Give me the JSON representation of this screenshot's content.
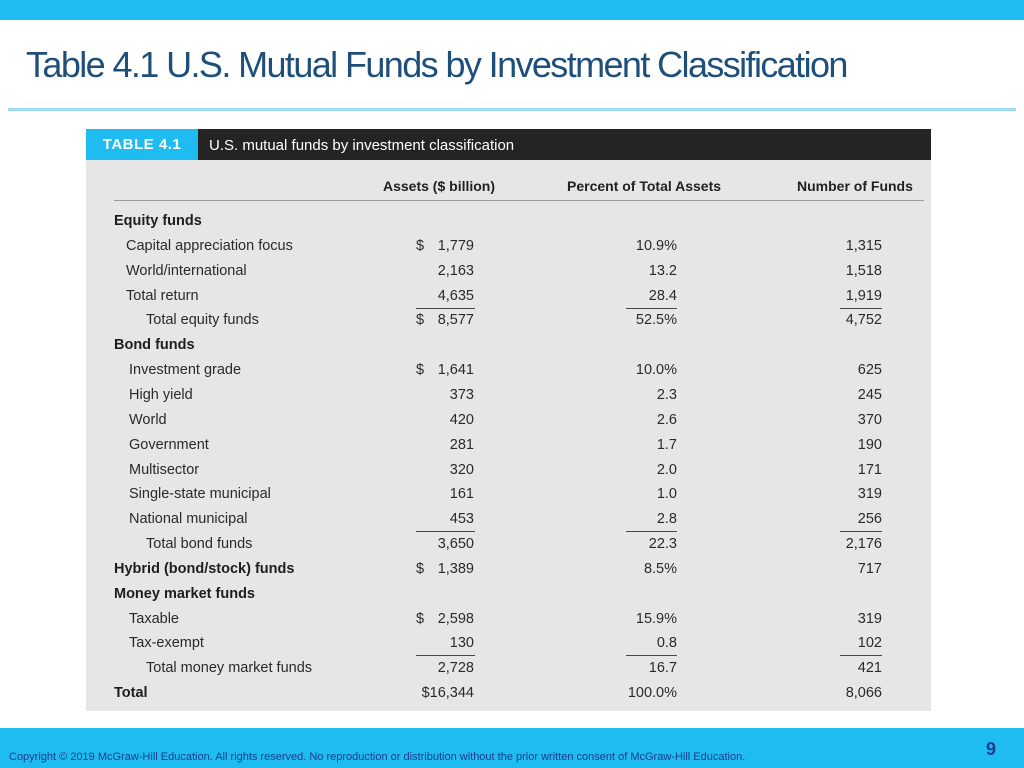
{
  "slide": {
    "title": "Table 4.1 U.S. Mutual Funds by Investment Classification",
    "copyright": "Copyright © 2019 McGraw-Hill Education. All rights reserved. No reproduction or distribution without the prior written consent of McGraw-Hill Education.",
    "page_number": "9",
    "accent_color": "#1ebcf0",
    "title_color": "#1e4f7a"
  },
  "table": {
    "tag": "TABLE 4.1",
    "caption": "U.S. mutual funds by investment classification",
    "columns": [
      "Assets ($ billion)",
      "Percent of Total Assets",
      "Number of Funds"
    ],
    "rows": [
      {
        "label": "Equity funds",
        "kind": "section"
      },
      {
        "label": "Capital appreciation focus",
        "kind": "item",
        "dollar": "$",
        "assets": "1,779",
        "pct": "10.9%",
        "num": "1,315"
      },
      {
        "label": "World/international",
        "kind": "item",
        "assets": "2,163",
        "pct": "13.2",
        "num": "1,518"
      },
      {
        "label": "Total return",
        "kind": "item",
        "assets": "4,635",
        "pct": "28.4",
        "num": "1,919",
        "underline": true
      },
      {
        "label": "Total equity funds",
        "kind": "total",
        "dollar": "$",
        "assets": "8,577",
        "pct": "52.5%",
        "num": "4,752"
      },
      {
        "label": "Bond funds",
        "kind": "section"
      },
      {
        "label": "Investment grade",
        "kind": "item2",
        "dollar": "$",
        "assets": "1,641",
        "pct": "10.0%",
        "num": "625"
      },
      {
        "label": "High yield",
        "kind": "item2",
        "assets": "373",
        "pct": "2.3",
        "num": "245"
      },
      {
        "label": "World",
        "kind": "item2",
        "assets": "420",
        "pct": "2.6",
        "num": "370"
      },
      {
        "label": "Government",
        "kind": "item2",
        "assets": "281",
        "pct": "1.7",
        "num": "190"
      },
      {
        "label": "Multisector",
        "kind": "item2",
        "assets": "320",
        "pct": "2.0",
        "num": "171"
      },
      {
        "label": "Single-state municipal",
        "kind": "item2",
        "assets": "161",
        "pct": "1.0",
        "num": "319"
      },
      {
        "label": "National municipal",
        "kind": "item2",
        "assets": "453",
        "pct": "2.8",
        "num": "256",
        "underline": true
      },
      {
        "label": "Total bond funds",
        "kind": "total",
        "assets": "3,650",
        "pct": "22.3",
        "num": "2,176"
      },
      {
        "label": "Hybrid (bond/stock) funds",
        "kind": "section",
        "dollar": "$",
        "assets": "1,389",
        "pct": "8.5%",
        "num": "717"
      },
      {
        "label": "Money market funds",
        "kind": "section"
      },
      {
        "label": "Taxable",
        "kind": "item2",
        "dollar": "$",
        "assets": "2,598",
        "pct": "15.9%",
        "num": "319"
      },
      {
        "label": "Tax-exempt",
        "kind": "item2",
        "assets": "130",
        "pct": "0.8",
        "num": "102",
        "underline": true
      },
      {
        "label": "Total money market funds",
        "kind": "total",
        "assets": "2,728",
        "pct": "16.7",
        "num": "421"
      },
      {
        "label": "Total",
        "kind": "section",
        "assets": "$16,344",
        "pct": "100.0%",
        "num": "8,066"
      }
    ]
  }
}
